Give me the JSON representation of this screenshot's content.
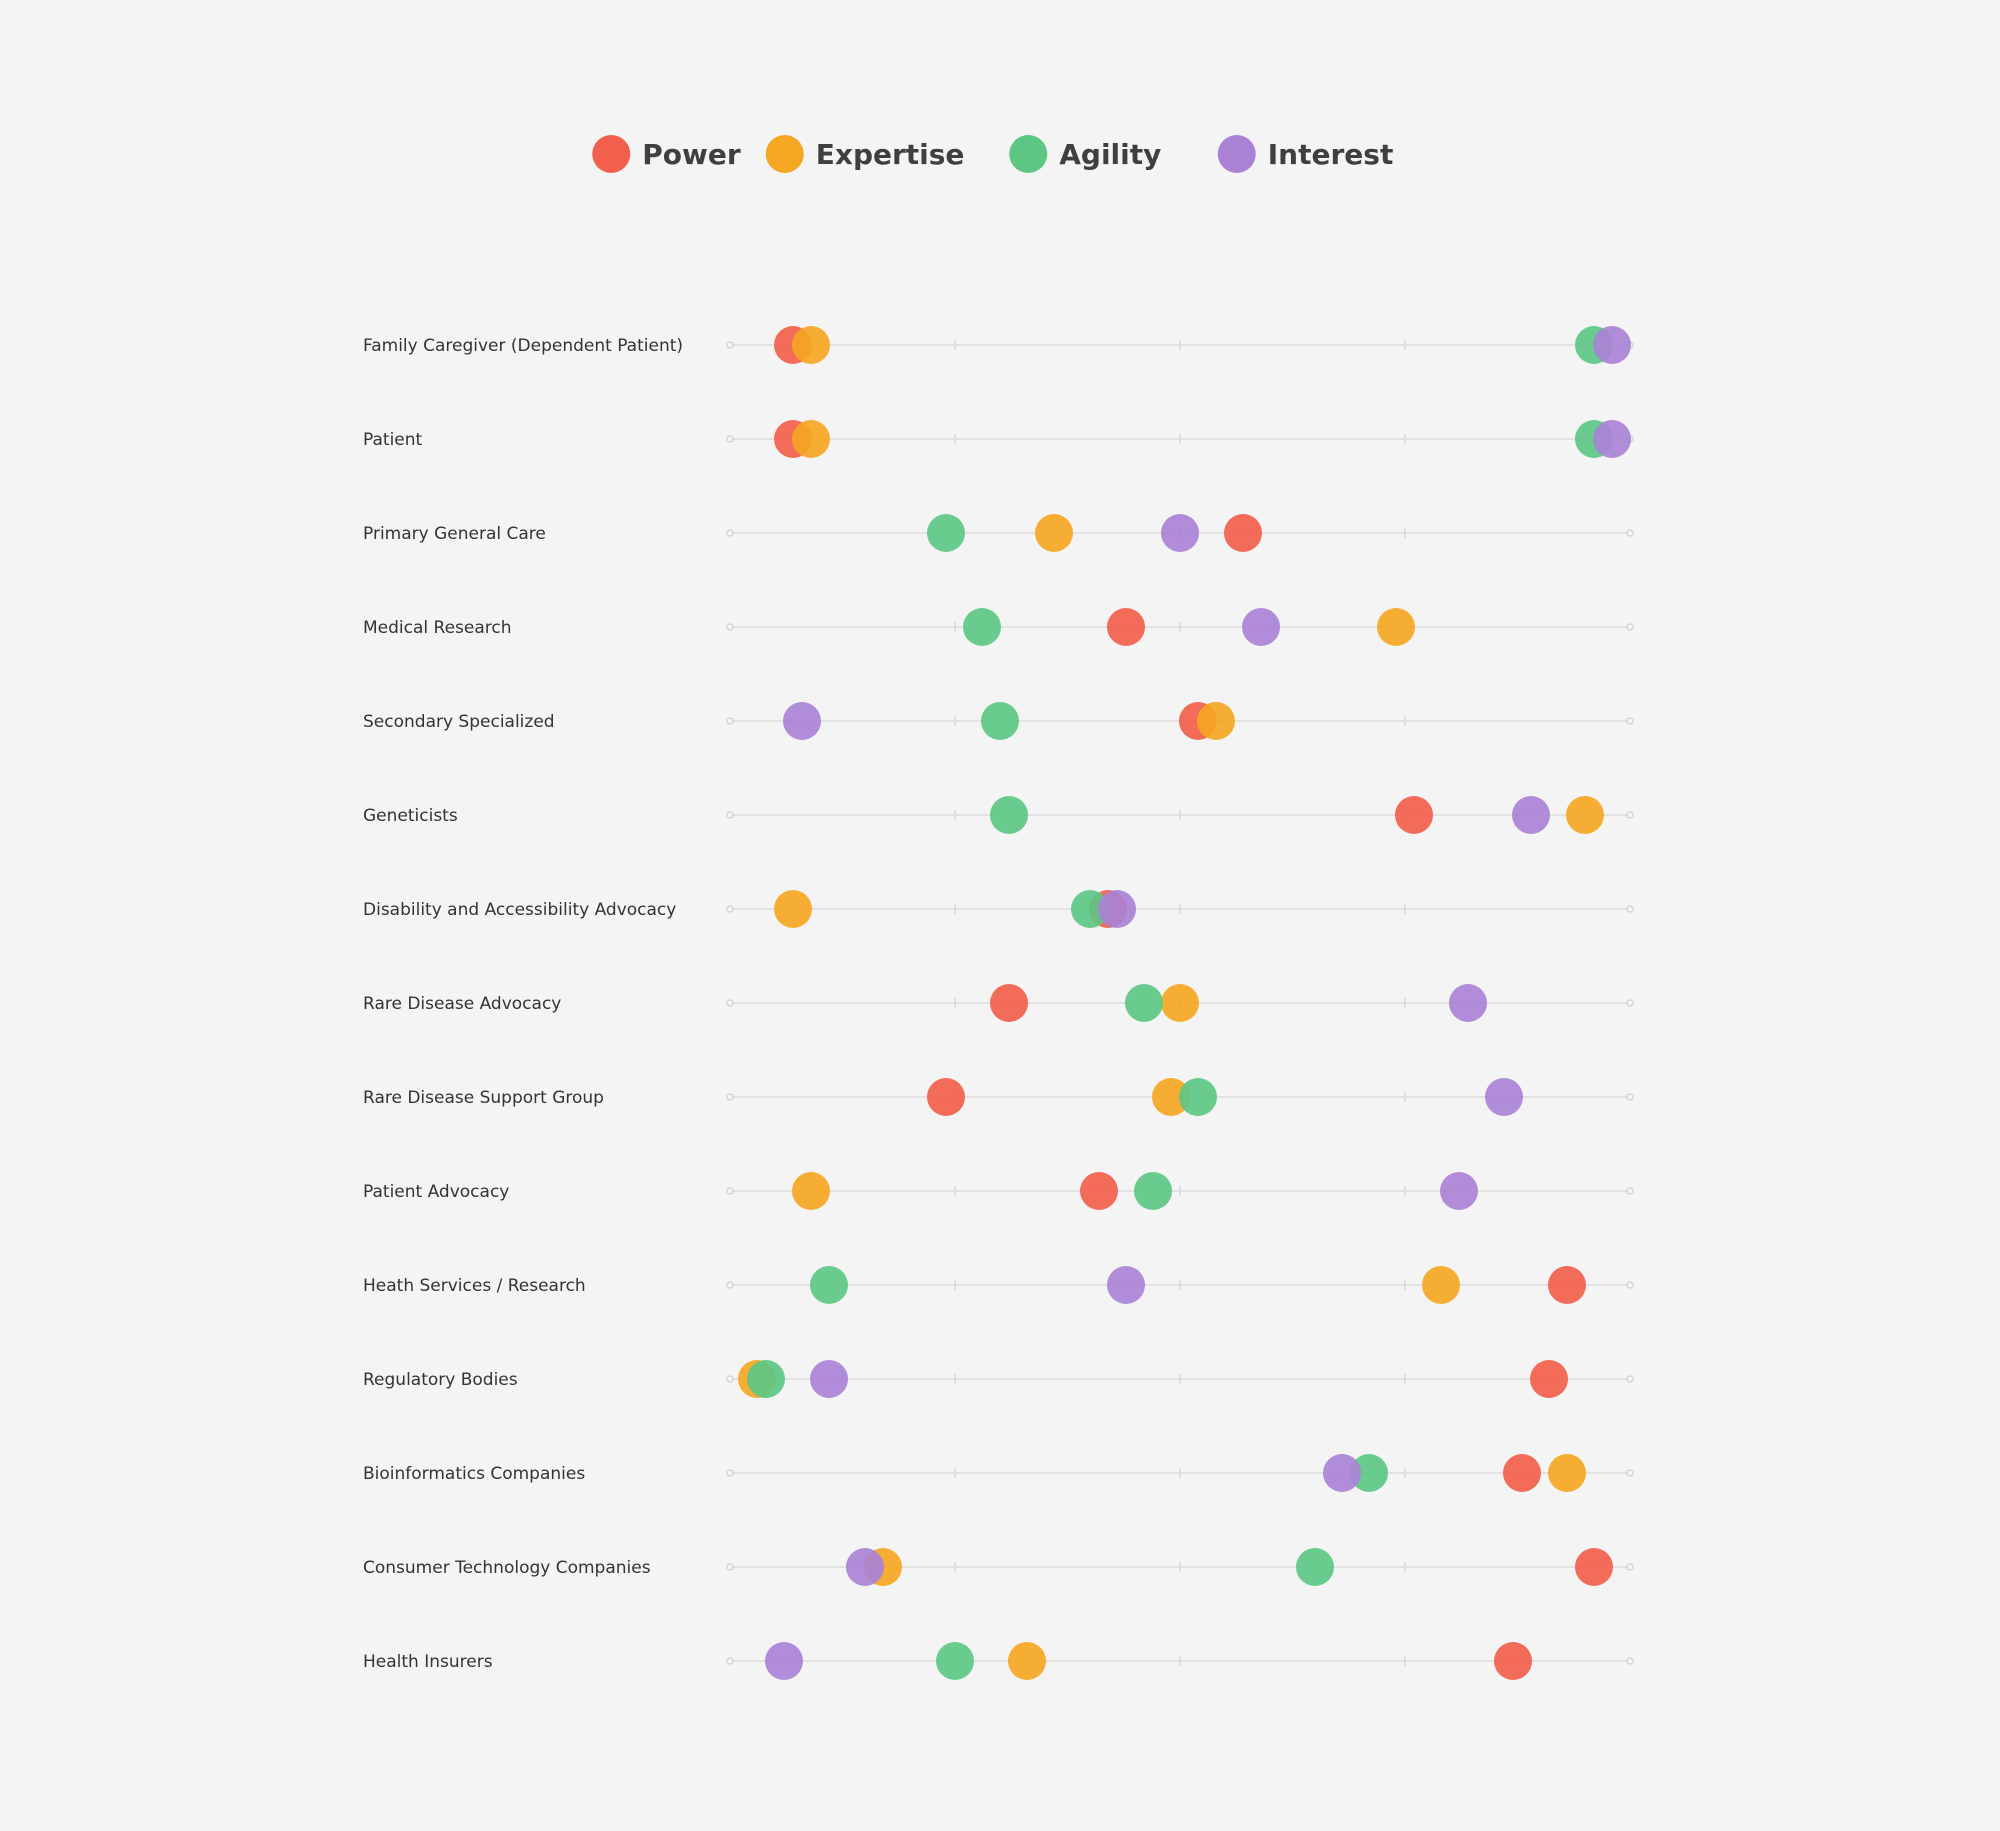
{
  "chart_data": {
    "type": "scatter",
    "title": "",
    "xlabel": "",
    "ylabel": "",
    "xlim": [
      0,
      100
    ],
    "legend_position": "top-center",
    "grid": false,
    "series": [
      {
        "name": "Power",
        "color": "#f25f4c"
      },
      {
        "name": "Expertise",
        "color": "#f5a623"
      },
      {
        "name": "Agility",
        "color": "#5cc783"
      },
      {
        "name": "Interest",
        "color": "#a982d6"
      }
    ],
    "categories": [
      "Family Caregiver (Dependent Patient)",
      "Patient",
      "Primary General Care",
      "Medical Research",
      "Secondary Specialized",
      "Geneticists",
      "Disability and Accessibility Advocacy",
      "Rare Disease Advocacy",
      "Rare Disease Support Group",
      "Patient Advocacy",
      "Heath Services / Research",
      "Regulatory Bodies",
      "Bioinformatics Companies",
      "Consumer Technology Companies",
      "Health Insurers"
    ],
    "values": {
      "Power": [
        7,
        7,
        57,
        44,
        52,
        76,
        42,
        31,
        24,
        41,
        93,
        91,
        88,
        96,
        87
      ],
      "Expertise": [
        9,
        9,
        36,
        74,
        54,
        95,
        7,
        50,
        49,
        9,
        79,
        3,
        93,
        17,
        33
      ],
      "Agility": [
        96,
        96,
        24,
        28,
        30,
        31,
        40,
        46,
        52,
        47,
        11,
        4,
        71,
        65,
        25
      ],
      "Interest": [
        98,
        98,
        50,
        59,
        8,
        89,
        43,
        82,
        86,
        81,
        44,
        11,
        68,
        15,
        6
      ]
    }
  }
}
